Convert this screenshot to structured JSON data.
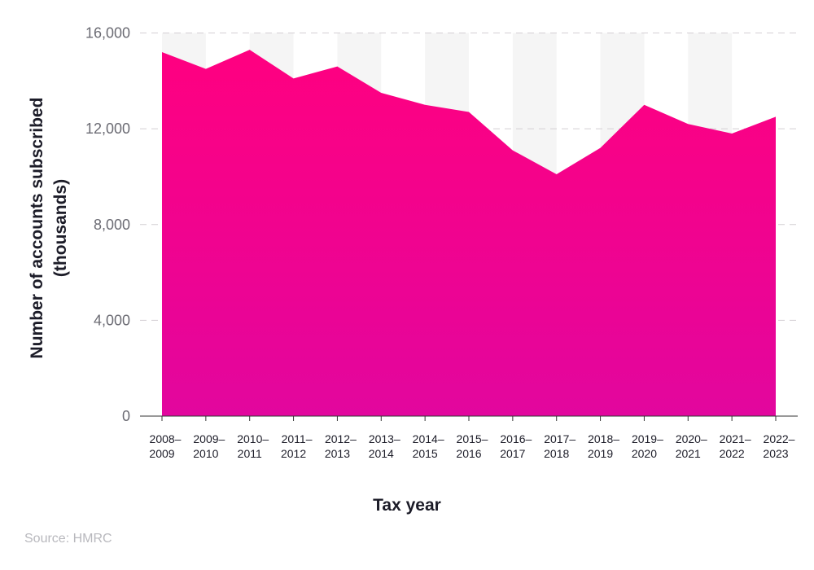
{
  "chart_data": {
    "type": "area",
    "title": "",
    "xlabel": "Tax year",
    "ylabel": "Number of accounts subscribed (thousands)",
    "ylim": [
      0,
      16000
    ],
    "yticks": [
      "0",
      "4,000",
      "8,000",
      "12,000",
      "16,000"
    ],
    "ytick_values": [
      0,
      4000,
      8000,
      12000,
      16000
    ],
    "grid": true,
    "categories": [
      "2008–2009",
      "2009–2010",
      "2010–2011",
      "2011–2012",
      "2012–2013",
      "2013–2014",
      "2014–2015",
      "2015–2016",
      "2016–2017",
      "2017–2018",
      "2018–2019",
      "2019–2020",
      "2020–2021",
      "2021–2022",
      "2022–2023"
    ],
    "values": [
      15200,
      14500,
      15300,
      14100,
      14600,
      13500,
      13000,
      12700,
      11100,
      10100,
      11200,
      13000,
      12200,
      11800,
      12500
    ],
    "colors": {
      "fill_top": "#ff0080",
      "fill_bottom": "#e2069e",
      "band": "#f5f5f5",
      "grid": "#d4cfd4"
    }
  },
  "source": "Source: HMRC"
}
